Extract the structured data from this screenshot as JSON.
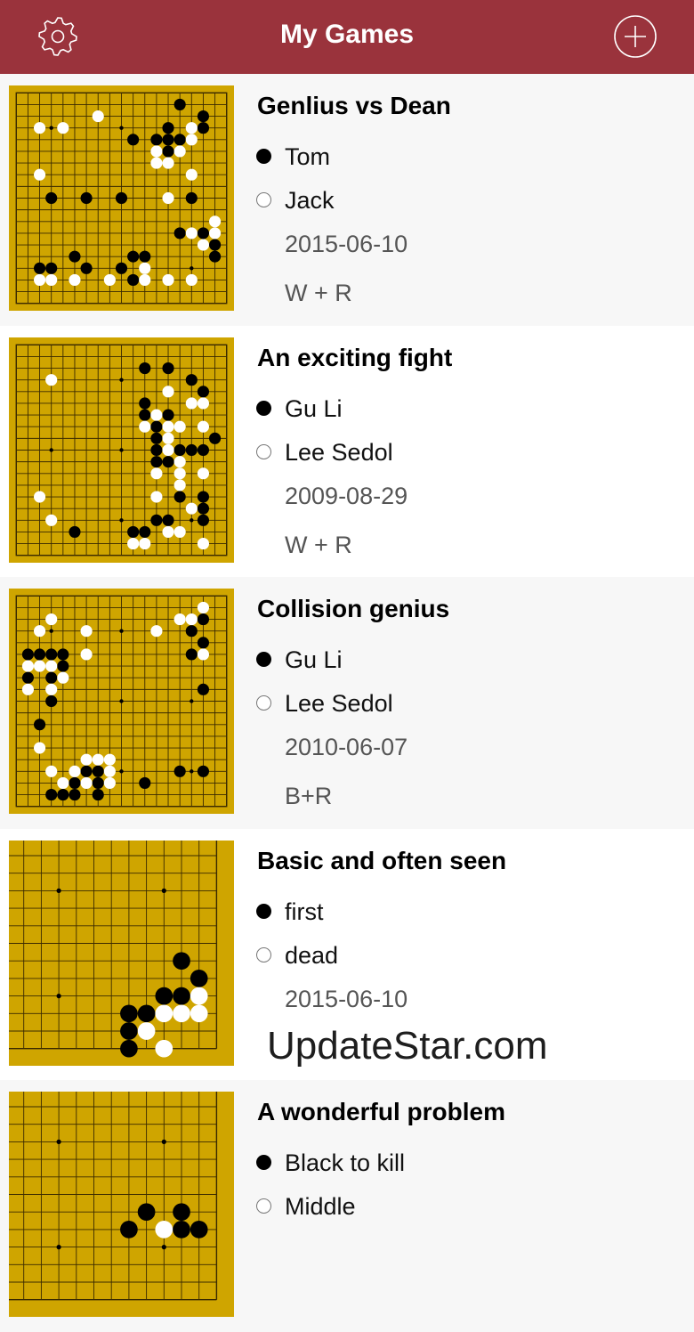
{
  "header": {
    "title": "My Games",
    "settings_icon": "gear-icon",
    "add_icon": "plus-circle-icon",
    "color": "#9a333c"
  },
  "colors": {
    "board": "#cfa500",
    "grid": "#3a2a00"
  },
  "watermark": "UpdateStar.com",
  "games": [
    {
      "title": "Genlius vs Dean",
      "black": "Tom",
      "white": "Jack",
      "date": "2015-06-10",
      "result": "W + R",
      "board": {
        "view": "full",
        "size": 19,
        "black": [
          [
            14,
            1
          ],
          [
            16,
            2
          ],
          [
            13,
            3
          ],
          [
            16,
            3
          ],
          [
            10,
            4
          ],
          [
            12,
            4
          ],
          [
            13,
            4
          ],
          [
            14,
            4
          ],
          [
            13,
            5
          ],
          [
            3,
            9
          ],
          [
            6,
            9
          ],
          [
            9,
            9
          ],
          [
            15,
            9
          ],
          [
            14,
            12
          ],
          [
            16,
            12
          ],
          [
            17,
            13
          ],
          [
            5,
            14
          ],
          [
            10,
            14
          ],
          [
            11,
            14
          ],
          [
            17,
            14
          ],
          [
            2,
            15
          ],
          [
            3,
            15
          ],
          [
            6,
            15
          ],
          [
            9,
            15
          ],
          [
            10,
            16
          ]
        ],
        "white": [
          [
            7,
            2
          ],
          [
            2,
            3
          ],
          [
            4,
            3
          ],
          [
            15,
            3
          ],
          [
            15,
            4
          ],
          [
            12,
            5
          ],
          [
            14,
            5
          ],
          [
            12,
            6
          ],
          [
            13,
            6
          ],
          [
            2,
            7
          ],
          [
            15,
            7
          ],
          [
            13,
            9
          ],
          [
            17,
            11
          ],
          [
            15,
            12
          ],
          [
            17,
            12
          ],
          [
            16,
            13
          ],
          [
            11,
            15
          ],
          [
            2,
            16
          ],
          [
            3,
            16
          ],
          [
            5,
            16
          ],
          [
            8,
            16
          ],
          [
            11,
            16
          ],
          [
            13,
            16
          ],
          [
            15,
            16
          ]
        ]
      }
    },
    {
      "title": "An exciting fight",
      "black": "Gu Li",
      "white": "Lee Sedol",
      "date": "2009-08-29",
      "result": "W + R",
      "board": {
        "view": "full",
        "size": 19,
        "black": [
          [
            11,
            2
          ],
          [
            13,
            2
          ],
          [
            15,
            3
          ],
          [
            16,
            4
          ],
          [
            11,
            5
          ],
          [
            11,
            6
          ],
          [
            13,
            6
          ],
          [
            12,
            7
          ],
          [
            12,
            8
          ],
          [
            17,
            8
          ],
          [
            12,
            9
          ],
          [
            14,
            9
          ],
          [
            15,
            9
          ],
          [
            16,
            9
          ],
          [
            12,
            10
          ],
          [
            13,
            10
          ],
          [
            14,
            13
          ],
          [
            16,
            13
          ],
          [
            16,
            14
          ],
          [
            12,
            15
          ],
          [
            13,
            15
          ],
          [
            16,
            15
          ],
          [
            5,
            16
          ],
          [
            10,
            16
          ],
          [
            11,
            16
          ]
        ],
        "white": [
          [
            3,
            3
          ],
          [
            13,
            4
          ],
          [
            15,
            5
          ],
          [
            16,
            5
          ],
          [
            12,
            6
          ],
          [
            11,
            7
          ],
          [
            13,
            7
          ],
          [
            14,
            7
          ],
          [
            16,
            7
          ],
          [
            13,
            8
          ],
          [
            13,
            9
          ],
          [
            14,
            10
          ],
          [
            12,
            11
          ],
          [
            14,
            11
          ],
          [
            16,
            11
          ],
          [
            14,
            12
          ],
          [
            2,
            13
          ],
          [
            12,
            13
          ],
          [
            15,
            14
          ],
          [
            3,
            15
          ],
          [
            13,
            16
          ],
          [
            14,
            16
          ],
          [
            10,
            17
          ],
          [
            11,
            17
          ],
          [
            16,
            17
          ]
        ]
      }
    },
    {
      "title": "Collision genius",
      "black": "Gu Li",
      "white": "Lee Sedol",
      "date": "2010-06-07",
      "result": "B+R",
      "board": {
        "view": "full",
        "size": 19,
        "black": [
          [
            16,
            2
          ],
          [
            15,
            3
          ],
          [
            16,
            4
          ],
          [
            1,
            5
          ],
          [
            2,
            5
          ],
          [
            3,
            5
          ],
          [
            4,
            5
          ],
          [
            15,
            5
          ],
          [
            4,
            6
          ],
          [
            1,
            7
          ],
          [
            3,
            7
          ],
          [
            16,
            8
          ],
          [
            3,
            9
          ],
          [
            2,
            11
          ],
          [
            6,
            15
          ],
          [
            7,
            15
          ],
          [
            14,
            15
          ],
          [
            16,
            15
          ],
          [
            5,
            16
          ],
          [
            7,
            16
          ],
          [
            11,
            16
          ],
          [
            3,
            17
          ],
          [
            4,
            17
          ],
          [
            5,
            17
          ],
          [
            7,
            17
          ]
        ],
        "white": [
          [
            16,
            1
          ],
          [
            3,
            2
          ],
          [
            14,
            2
          ],
          [
            15,
            2
          ],
          [
            2,
            3
          ],
          [
            6,
            3
          ],
          [
            12,
            3
          ],
          [
            6,
            5
          ],
          [
            16,
            5
          ],
          [
            1,
            6
          ],
          [
            2,
            6
          ],
          [
            3,
            6
          ],
          [
            4,
            7
          ],
          [
            1,
            8
          ],
          [
            3,
            8
          ],
          [
            2,
            13
          ],
          [
            6,
            14
          ],
          [
            7,
            14
          ],
          [
            8,
            14
          ],
          [
            3,
            15
          ],
          [
            5,
            15
          ],
          [
            8,
            15
          ],
          [
            4,
            16
          ],
          [
            6,
            16
          ],
          [
            8,
            16
          ]
        ]
      }
    },
    {
      "title": "Basic and often seen",
      "black": "first",
      "white": "dead",
      "date": "2015-06-10",
      "result": "",
      "board": {
        "view": "bottom-right-corner",
        "black": [
          [
            9,
            6
          ],
          [
            10,
            7
          ],
          [
            8,
            8
          ],
          [
            9,
            8
          ],
          [
            6,
            9
          ],
          [
            7,
            9
          ],
          [
            6,
            10
          ],
          [
            6,
            11
          ]
        ],
        "white": [
          [
            10,
            8
          ],
          [
            8,
            9
          ],
          [
            9,
            9
          ],
          [
            10,
            9
          ],
          [
            7,
            10
          ],
          [
            8,
            11
          ]
        ]
      }
    },
    {
      "title": "A wonderful problem",
      "black": "Black to kill",
      "white": "Middle",
      "date": "",
      "result": "",
      "board": {
        "view": "bottom-right-corner",
        "black": [
          [
            7,
            6
          ],
          [
            9,
            6
          ],
          [
            6,
            7
          ],
          [
            9,
            7
          ],
          [
            10,
            7
          ]
        ],
        "white": [
          [
            8,
            7
          ]
        ]
      }
    }
  ]
}
